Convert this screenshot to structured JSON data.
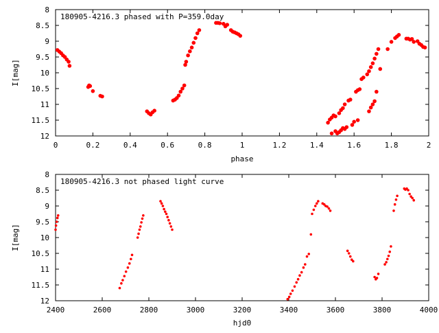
{
  "chart_data": [
    {
      "type": "scatter",
      "title": "180905-4216.3 phased with P=359.0day",
      "xlabel": "phase",
      "ylabel": "I[mag]",
      "xlim": [
        0,
        2
      ],
      "ylim": [
        8,
        12
      ],
      "y_inverted": true,
      "grid": false,
      "marker_color": "#ff0000",
      "marker": "filled-circle",
      "x_ticks": [
        "0",
        "0.2",
        "0.4",
        "0.6",
        "0.8",
        "1",
        "1.2",
        "1.4",
        "1.6",
        "1.8",
        "2"
      ],
      "y_ticks": [
        "8",
        "8.5",
        "9",
        "9.5",
        "10",
        "10.5",
        "11",
        "11.5",
        "12"
      ],
      "points": [
        [
          0.01,
          9.28
        ],
        [
          0.02,
          9.33
        ],
        [
          0.03,
          9.38
        ],
        [
          0.04,
          9.45
        ],
        [
          0.05,
          9.5
        ],
        [
          0.06,
          9.58
        ],
        [
          0.07,
          9.65
        ],
        [
          0.075,
          9.78
        ],
        [
          0.175,
          10.45
        ],
        [
          0.18,
          10.4
        ],
        [
          0.185,
          10.42
        ],
        [
          0.2,
          10.58
        ],
        [
          0.24,
          10.73
        ],
        [
          0.25,
          10.75
        ],
        [
          0.49,
          11.22
        ],
        [
          0.5,
          11.28
        ],
        [
          0.51,
          11.32
        ],
        [
          0.52,
          11.25
        ],
        [
          0.53,
          11.2
        ],
        [
          0.63,
          10.88
        ],
        [
          0.64,
          10.85
        ],
        [
          0.65,
          10.8
        ],
        [
          0.66,
          10.72
        ],
        [
          0.67,
          10.6
        ],
        [
          0.68,
          10.5
        ],
        [
          0.69,
          10.4
        ],
        [
          0.695,
          9.75
        ],
        [
          0.7,
          9.65
        ],
        [
          0.71,
          9.45
        ],
        [
          0.72,
          9.32
        ],
        [
          0.73,
          9.2
        ],
        [
          0.74,
          9.05
        ],
        [
          0.75,
          8.9
        ],
        [
          0.76,
          8.75
        ],
        [
          0.77,
          8.65
        ],
        [
          0.86,
          8.42
        ],
        [
          0.87,
          8.42
        ],
        [
          0.88,
          8.43
        ],
        [
          0.9,
          8.45
        ],
        [
          0.91,
          8.53
        ],
        [
          0.92,
          8.48
        ],
        [
          0.94,
          8.65
        ],
        [
          0.95,
          8.7
        ],
        [
          0.96,
          8.72
        ],
        [
          0.97,
          8.75
        ],
        [
          0.98,
          8.78
        ],
        [
          0.99,
          8.83
        ],
        [
          1.46,
          11.58
        ],
        [
          1.47,
          11.48
        ],
        [
          1.48,
          11.42
        ],
        [
          1.49,
          11.35
        ],
        [
          1.5,
          11.38
        ],
        [
          1.48,
          11.92
        ],
        [
          1.5,
          11.85
        ],
        [
          1.51,
          11.92
        ],
        [
          1.52,
          11.88
        ],
        [
          1.53,
          11.82
        ],
        [
          1.54,
          11.75
        ],
        [
          1.55,
          11.78
        ],
        [
          1.56,
          11.72
        ],
        [
          1.52,
          11.28
        ],
        [
          1.53,
          11.18
        ],
        [
          1.54,
          11.12
        ],
        [
          1.55,
          11.0
        ],
        [
          1.57,
          10.88
        ],
        [
          1.58,
          10.85
        ],
        [
          1.59,
          11.65
        ],
        [
          1.6,
          11.55
        ],
        [
          1.62,
          11.5
        ],
        [
          1.61,
          10.6
        ],
        [
          1.62,
          10.55
        ],
        [
          1.63,
          10.52
        ],
        [
          1.64,
          10.2
        ],
        [
          1.65,
          10.15
        ],
        [
          1.67,
          10.05
        ],
        [
          1.68,
          9.95
        ],
        [
          1.69,
          9.82
        ],
        [
          1.7,
          9.7
        ],
        [
          1.71,
          9.55
        ],
        [
          1.72,
          9.4
        ],
        [
          1.73,
          9.25
        ],
        [
          1.68,
          11.22
        ],
        [
          1.69,
          11.1
        ],
        [
          1.7,
          11.0
        ],
        [
          1.71,
          10.9
        ],
        [
          1.72,
          10.6
        ],
        [
          1.74,
          9.88
        ],
        [
          1.78,
          9.25
        ],
        [
          1.8,
          9.02
        ],
        [
          1.82,
          8.9
        ],
        [
          1.83,
          8.85
        ],
        [
          1.84,
          8.8
        ],
        [
          1.88,
          8.92
        ],
        [
          1.89,
          8.92
        ],
        [
          1.9,
          8.95
        ],
        [
          1.91,
          8.93
        ],
        [
          1.92,
          9.02
        ],
        [
          1.94,
          9.0
        ],
        [
          1.95,
          9.08
        ],
        [
          1.96,
          9.12
        ],
        [
          1.97,
          9.18
        ],
        [
          1.98,
          9.2
        ]
      ]
    },
    {
      "type": "scatter",
      "title": "180905-4216.3 not phased light curve",
      "xlabel": "hjd0",
      "ylabel": "I[mag]",
      "xlim": [
        2400,
        4000
      ],
      "ylim": [
        8,
        12
      ],
      "y_inverted": true,
      "grid": false,
      "marker_color": "#ff0000",
      "marker": "filled-circle",
      "x_ticks": [
        "2400",
        "2600",
        "2800",
        "3000",
        "3200",
        "3400",
        "3600",
        "3800",
        "4000"
      ],
      "y_ticks": [
        "8",
        "8.5",
        "9",
        "9.5",
        "10",
        "10.5",
        "11",
        "11.5",
        "12"
      ],
      "points": [
        [
          2400,
          9.75
        ],
        [
          2402,
          9.62
        ],
        [
          2405,
          9.5
        ],
        [
          2408,
          9.38
        ],
        [
          2411,
          9.3
        ],
        [
          2675,
          11.6
        ],
        [
          2682,
          11.45
        ],
        [
          2688,
          11.35
        ],
        [
          2695,
          11.22
        ],
        [
          2702,
          11.08
        ],
        [
          2710,
          10.95
        ],
        [
          2717,
          10.82
        ],
        [
          2723,
          10.68
        ],
        [
          2728,
          10.55
        ],
        [
          2752,
          10.0
        ],
        [
          2756,
          9.88
        ],
        [
          2760,
          9.75
        ],
        [
          2764,
          9.65
        ],
        [
          2768,
          9.52
        ],
        [
          2772,
          9.4
        ],
        [
          2776,
          9.3
        ],
        [
          2850,
          8.85
        ],
        [
          2855,
          8.92
        ],
        [
          2860,
          9.0
        ],
        [
          2865,
          9.1
        ],
        [
          2870,
          9.18
        ],
        [
          2875,
          9.25
        ],
        [
          2880,
          9.35
        ],
        [
          2885,
          9.45
        ],
        [
          2890,
          9.55
        ],
        [
          2895,
          9.65
        ],
        [
          2900,
          9.75
        ],
        [
          3395,
          11.95
        ],
        [
          3402,
          11.88
        ],
        [
          3408,
          11.78
        ],
        [
          3416,
          11.68
        ],
        [
          3425,
          11.55
        ],
        [
          3433,
          11.42
        ],
        [
          3440,
          11.32
        ],
        [
          3447,
          11.2
        ],
        [
          3455,
          11.1
        ],
        [
          3463,
          10.95
        ],
        [
          3470,
          10.85
        ],
        [
          3478,
          10.6
        ],
        [
          3486,
          10.52
        ],
        [
          3495,
          9.9
        ],
        [
          3500,
          9.25
        ],
        [
          3507,
          9.12
        ],
        [
          3514,
          9.0
        ],
        [
          3520,
          8.92
        ],
        [
          3526,
          8.85
        ],
        [
          3545,
          8.92
        ],
        [
          3552,
          8.95
        ],
        [
          3558,
          9.0
        ],
        [
          3565,
          9.02
        ],
        [
          3572,
          9.08
        ],
        [
          3578,
          9.15
        ],
        [
          3652,
          10.42
        ],
        [
          3658,
          10.5
        ],
        [
          3664,
          10.6
        ],
        [
          3670,
          10.7
        ],
        [
          3676,
          10.75
        ],
        [
          3768,
          11.25
        ],
        [
          3773,
          11.32
        ],
        [
          3778,
          11.28
        ],
        [
          3784,
          11.15
        ],
        [
          3812,
          10.85
        ],
        [
          3818,
          10.78
        ],
        [
          3823,
          10.68
        ],
        [
          3828,
          10.58
        ],
        [
          3833,
          10.45
        ],
        [
          3838,
          10.28
        ],
        [
          3850,
          9.15
        ],
        [
          3855,
          8.95
        ],
        [
          3860,
          8.8
        ],
        [
          3865,
          8.68
        ],
        [
          3895,
          8.45
        ],
        [
          3900,
          8.48
        ],
        [
          3906,
          8.45
        ],
        [
          3912,
          8.5
        ],
        [
          3918,
          8.62
        ],
        [
          3924,
          8.7
        ],
        [
          3930,
          8.75
        ],
        [
          3936,
          8.82
        ]
      ]
    }
  ]
}
